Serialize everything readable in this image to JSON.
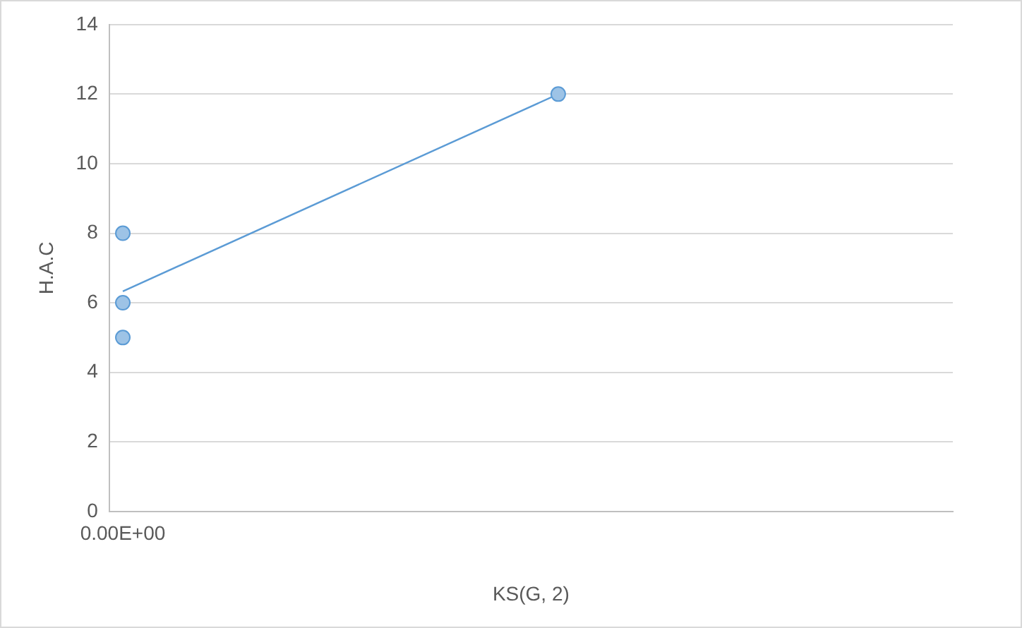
{
  "chart_data": {
    "type": "scatter",
    "xlabel": "KS(G, 2)",
    "ylabel": "H.A.C",
    "categories": [
      "0.00E+00",
      null,
      null,
      null,
      null,
      null,
      null,
      null,
      null,
      null,
      null,
      null,
      null,
      null,
      null,
      null,
      null,
      null,
      null,
      null,
      null,
      null,
      null,
      null,
      null,
      null,
      null,
      null,
      null,
      null,
      null
    ],
    "ylim": [
      0,
      14
    ],
    "yticks": [
      0,
      2,
      4,
      6,
      8,
      10,
      12,
      14
    ],
    "grid": "y",
    "legend": false,
    "marker": "circle",
    "series": [
      {
        "type": "scatter",
        "color": "#5b9bd5",
        "values": [
          8,
          null,
          null,
          null,
          null,
          null,
          null,
          null,
          null,
          null,
          null,
          null,
          null,
          null,
          null,
          null,
          12,
          null,
          null,
          null,
          null,
          null,
          null,
          null,
          null,
          null,
          null,
          null,
          null,
          null,
          null
        ]
      },
      {
        "type": "scatter",
        "color": "#5b9bd5",
        "values": [
          6,
          null,
          null,
          null,
          null,
          null,
          null,
          null,
          null,
          null,
          null,
          null,
          null,
          null,
          null,
          null,
          null,
          null,
          null,
          null,
          null,
          null,
          null,
          null,
          null,
          null,
          null,
          null,
          null,
          null,
          null
        ]
      },
      {
        "type": "scatter",
        "color": "#5b9bd5",
        "values": [
          5,
          null,
          null,
          null,
          null,
          null,
          null,
          null,
          null,
          null,
          null,
          null,
          null,
          null,
          null,
          null,
          null,
          null,
          null,
          null,
          null,
          null,
          null,
          null,
          null,
          null,
          null,
          null,
          null,
          null,
          null
        ]
      },
      {
        "type": "line",
        "color": "#5b9bd5",
        "marker": "none",
        "line_style": "solid",
        "values": [
          6.33,
          null,
          null,
          null,
          null,
          null,
          null,
          null,
          null,
          null,
          null,
          null,
          null,
          null,
          null,
          null,
          12,
          null,
          null,
          null,
          null,
          null,
          null,
          null,
          null,
          null,
          null,
          null,
          null,
          null,
          null
        ]
      }
    ]
  }
}
